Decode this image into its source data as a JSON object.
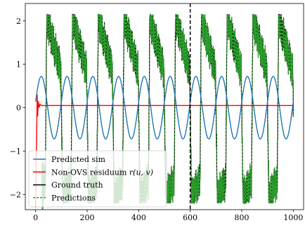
{
  "chart_data": {
    "type": "line",
    "title": "",
    "xlabel": "",
    "ylabel": "",
    "xlim": [
      -40,
      1040
    ],
    "ylim": [
      -2.35,
      2.4
    ],
    "xticks": [
      0,
      200,
      400,
      600,
      800,
      1000
    ],
    "yticks": [
      -2,
      -1,
      0,
      1,
      2
    ],
    "xtick_labels": [
      "0",
      "200",
      "400",
      "600",
      "800",
      "1000"
    ],
    "ytick_labels": [
      "−2",
      "−1",
      "0",
      "1",
      "2"
    ],
    "vline": {
      "x": 600,
      "style": "dashed",
      "color": "#000000"
    },
    "legend": {
      "placement": "lower-left"
    },
    "series": [
      {
        "name": "Predicted sim",
        "color": "#1f77b4",
        "style": "solid",
        "kind": "sinusoid",
        "x_range": [
          0,
          1000
        ],
        "amplitude": 0.72,
        "period": 100,
        "phase_peak_x": 22
      },
      {
        "name": "Non-OVS residuum r(u, v)",
        "color": "#ff0000",
        "style": "solid",
        "kind": "transient",
        "points": [
          [
            0,
            -2.3
          ],
          [
            2,
            -1.3
          ],
          [
            4,
            -0.7
          ],
          [
            6,
            0.3
          ],
          [
            8,
            -0.2
          ],
          [
            10,
            0.15
          ],
          [
            13,
            0.0
          ],
          [
            17,
            0.08
          ],
          [
            22,
            0.05
          ],
          [
            1000,
            0.05
          ]
        ]
      },
      {
        "name": "Ground truth",
        "color": "#000000",
        "style": "solid",
        "kind": "composite",
        "x_range": [
          30,
          1000
        ],
        "envelope": {
          "max": 2.15,
          "min": -2.2
        },
        "period": 100
      },
      {
        "name": "Predictions",
        "color": "#2ca02c",
        "style": "dashed",
        "kind": "composite",
        "x_range": [
          30,
          1000
        ],
        "envelope": {
          "max": 2.15,
          "min": -2.2
        },
        "period": 100
      }
    ],
    "legend_labels": {
      "sim": "Predicted sim",
      "residuum_prefix": "Non-OVS residuum ",
      "residuum_math": "r(u, v)",
      "truth": "Ground truth",
      "predictions": "Predictions"
    }
  }
}
